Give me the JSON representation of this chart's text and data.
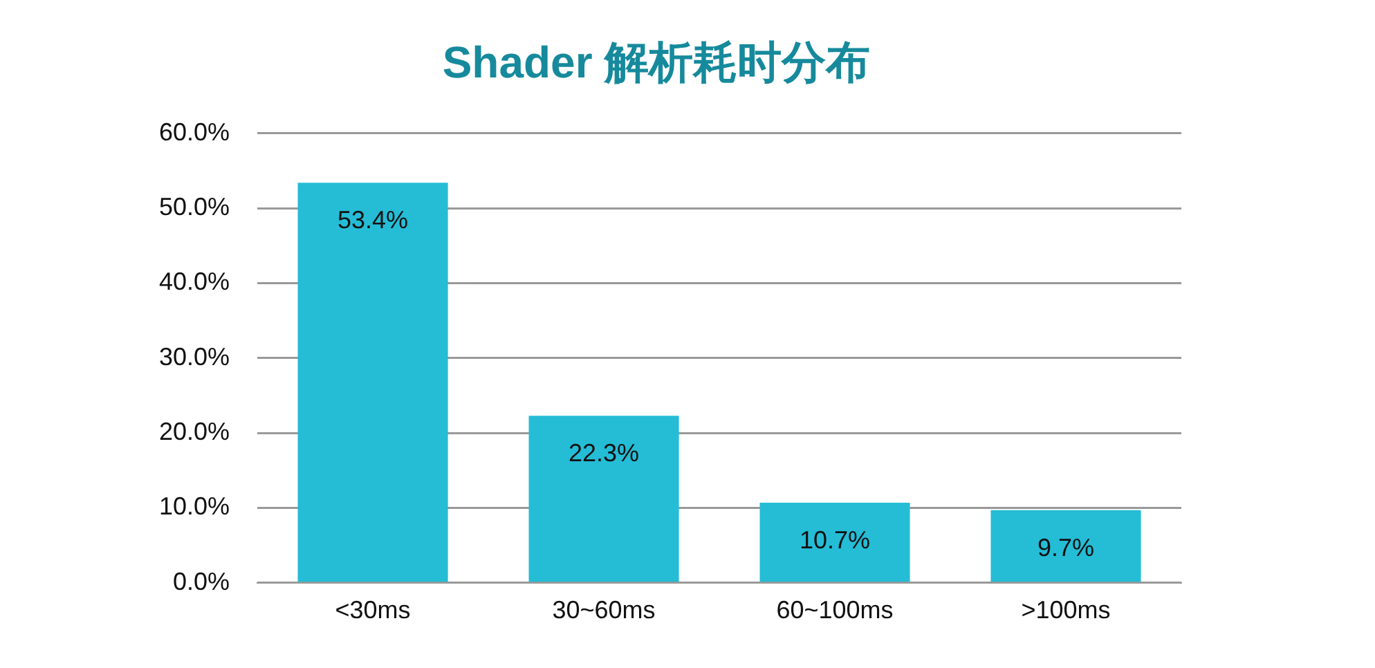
{
  "chart_data": {
    "type": "bar",
    "title": "Shader 解析耗时分布",
    "categories": [
      "<30ms",
      "30~60ms",
      "60~100ms",
      ">100ms"
    ],
    "values": [
      53.4,
      22.3,
      10.7,
      9.7
    ],
    "value_labels": [
      "53.4%",
      "22.3%",
      "10.7%",
      "9.7%"
    ],
    "color": "#25bcd6",
    "ylim": [
      0,
      60
    ],
    "yticks": [
      {
        "value": 0,
        "label": "0.0%"
      },
      {
        "value": 10,
        "label": "10.0%"
      },
      {
        "value": 20,
        "label": "20.0%"
      },
      {
        "value": 30,
        "label": "30.0%"
      },
      {
        "value": 40,
        "label": "40.0%"
      },
      {
        "value": 50,
        "label": "50.0%"
      },
      {
        "value": 60,
        "label": "60.0%"
      }
    ],
    "grid": "y"
  }
}
